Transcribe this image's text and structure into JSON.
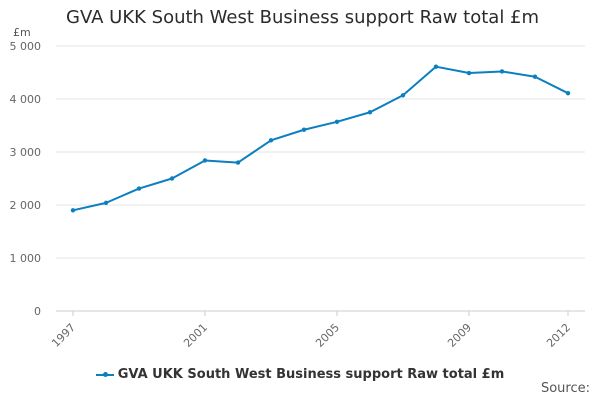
{
  "chart_data": {
    "type": "line",
    "title": "GVA UKK South West Business support Raw total £m",
    "unit_label": "£m",
    "x": [
      1997,
      1998,
      1999,
      2000,
      2001,
      2002,
      2003,
      2004,
      2005,
      2006,
      2007,
      2008,
      2009,
      2010,
      2011,
      2012
    ],
    "x_tick_labels": [
      "1997",
      "2001",
      "2005",
      "2009",
      "2012"
    ],
    "x_tick_values": [
      1997,
      2001,
      2005,
      2009,
      2012
    ],
    "y_ticks": [
      0,
      1000,
      2000,
      3000,
      4000,
      5000
    ],
    "y_tick_labels": [
      "0",
      "1 000",
      "2 000",
      "3 000",
      "4 000",
      "5 000"
    ],
    "ylim": [
      0,
      5000
    ],
    "series": [
      {
        "name": "GVA UKK South West Business support Raw total £m",
        "values": [
          1900,
          2040,
          2310,
          2500,
          2840,
          2800,
          3220,
          3420,
          3570,
          3750,
          4070,
          4610,
          4490,
          4520,
          4420,
          4110
        ]
      }
    ],
    "grid": "horizontal",
    "legend_position": "bottom",
    "colors": {
      "series": "#0b7fbf",
      "grid": "#e6e6e6"
    }
  },
  "footer": {
    "source_label": "Source:"
  }
}
